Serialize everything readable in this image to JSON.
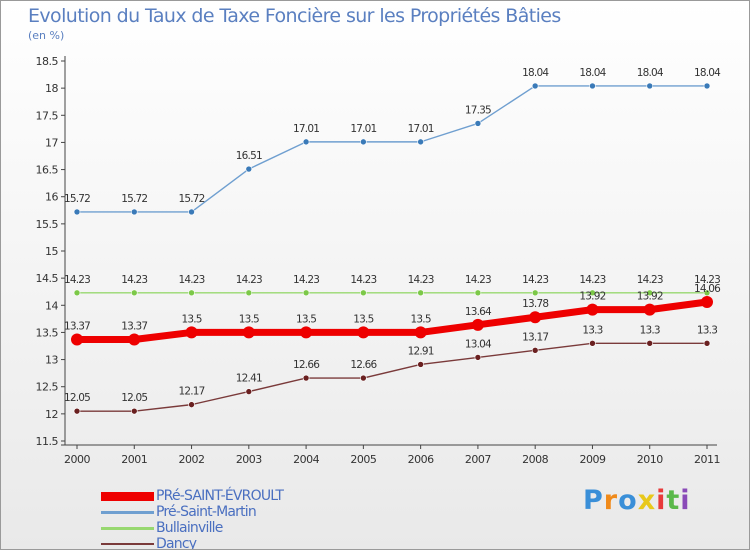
{
  "page": {
    "title": "Evolution du Taux de Taxe Foncière sur les Propriétés Bâties",
    "subtitle": "(en %)"
  },
  "chart_data": {
    "type": "line",
    "title": "Evolution du Taux de Taxe Foncière sur les Propriétés Bâties",
    "ylabel": "(en %)",
    "xlabel": "",
    "ylim": [
      11.5,
      18.5
    ],
    "yticks": [
      "11.5",
      "12",
      "12.5",
      "13",
      "13.5",
      "14",
      "14.5",
      "15",
      "15.5",
      "16",
      "16.5",
      "17",
      "17.5",
      "18",
      "18.5"
    ],
    "x": [
      "2000",
      "2001",
      "2002",
      "2003",
      "2004",
      "2005",
      "2006",
      "2007",
      "2008",
      "2009",
      "2010",
      "2011"
    ],
    "grid": false,
    "legend_position": "bottom-left",
    "series": [
      {
        "name": "Pré-Saint-Martin",
        "color": "#6f9fd0",
        "marker": "#3a7ab8",
        "emphasis": false,
        "values": [
          15.72,
          15.72,
          15.72,
          16.51,
          17.01,
          17.01,
          17.01,
          17.35,
          18.04,
          18.04,
          18.04,
          18.04
        ],
        "labels": [
          "15.72",
          "15.72",
          "15.72",
          "16.51",
          "17.01",
          "17.01",
          "17.01",
          "17.35",
          "18.04",
          "18.04",
          "18.04",
          "18.04"
        ]
      },
      {
        "name": "Bullainville",
        "color": "#98d870",
        "marker": "#7cc848",
        "emphasis": false,
        "values": [
          14.23,
          14.23,
          14.23,
          14.23,
          14.23,
          14.23,
          14.23,
          14.23,
          14.23,
          14.23,
          14.23,
          14.23
        ],
        "labels": [
          "14.23",
          "14.23",
          "14.23",
          "14.23",
          "14.23",
          "14.23",
          "14.23",
          "14.23",
          "14.23",
          "14.23",
          "14.23",
          "14.23"
        ]
      },
      {
        "name": "Dancy",
        "color": "#7a3a3a",
        "marker": "#6a2020",
        "emphasis": false,
        "values": [
          12.05,
          12.05,
          12.17,
          12.41,
          12.66,
          12.66,
          12.91,
          13.04,
          13.17,
          13.3,
          13.3,
          13.3
        ],
        "labels": [
          "12.05",
          "12.05",
          "12.17",
          "12.41",
          "12.66",
          "12.66",
          "12.91",
          "13.04",
          "13.17",
          "13.3",
          "13.3",
          "13.3"
        ]
      },
      {
        "name": "PRé-SAINT-ÉVROULT",
        "color": "#ee0000",
        "marker": "#ee0000",
        "emphasis": true,
        "values": [
          13.37,
          13.37,
          13.5,
          13.5,
          13.5,
          13.5,
          13.5,
          13.64,
          13.78,
          13.92,
          13.92,
          14.06
        ],
        "labels": [
          "13.37",
          "13.37",
          "13.5",
          "13.5",
          "13.5",
          "13.5",
          "13.5",
          "13.64",
          "13.78",
          "13.92",
          "13.92",
          "14.06"
        ]
      }
    ]
  },
  "legend": {
    "items": [
      {
        "label": "PRé-SAINT-ÉVROULT",
        "color": "#ee0000",
        "emphasis": true
      },
      {
        "label": "Pré-Saint-Martin",
        "color": "#6f9fd0",
        "emphasis": false
      },
      {
        "label": "Bullainville",
        "color": "#98d870",
        "emphasis": false
      },
      {
        "label": "Dancy",
        "color": "#7a3a3a",
        "emphasis": false
      }
    ]
  },
  "logo": {
    "text": "Proxiti",
    "letters": [
      "P",
      "r",
      "o",
      "x",
      "i",
      "t",
      "i"
    ],
    "colors": [
      "#3a8fd8",
      "#f08a1a",
      "#3a8fd8",
      "#e8c81a",
      "#e83a3a",
      "#5ab84a",
      "#8a4ab8"
    ]
  }
}
